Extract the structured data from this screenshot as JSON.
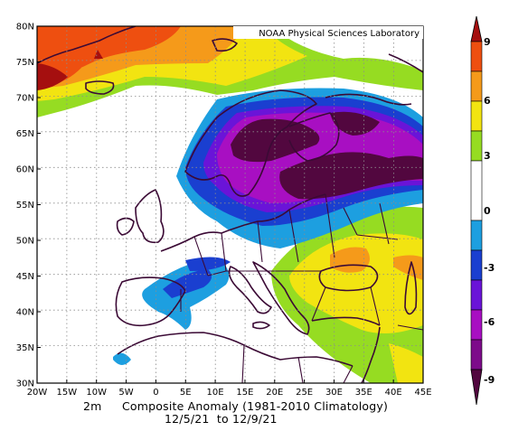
{
  "map": {
    "credit": "NOAA Physical Sciences Laboratory",
    "lat_labels": [
      "30N",
      "35N",
      "40N",
      "45N",
      "50N",
      "55N",
      "60N",
      "65N",
      "70N",
      "75N",
      "80N"
    ],
    "lon_labels": [
      "20W",
      "15W",
      "10W",
      "5W",
      "0",
      "5E",
      "10E",
      "15E",
      "20E",
      "25E",
      "30E",
      "35E",
      "40E",
      "45E"
    ],
    "lat_range": [
      30,
      80
    ],
    "lon_range": [
      -20,
      45
    ],
    "grid": true
  },
  "caption": {
    "line1_var": "2m",
    "line1_title": "Composite Anomaly (1981-2010 Climatology)",
    "line2": "12/5/21  to 12/9/21"
  },
  "colorbar": {
    "labels": [
      "9",
      "6",
      "3",
      "0",
      "-3",
      "-6",
      "-9"
    ],
    "colors": {
      "above_9": "#a50f0f",
      "6_to_9": "#ee4f10",
      "4.5_to_6": "#f59a1a",
      "3_to_4.5": "#f2e411",
      "1.5_to_3": "#96dc22",
      "0_band": "#ffffff",
      "-1.5_to_-3": "#1d9fe0",
      "-3_to_-4.5": "#1a3fd0",
      "-4.5_to_-6": "#6a14d8",
      "-6_to_-7.5": "#a80fc2",
      "below_-9": "#52073f"
    }
  }
}
